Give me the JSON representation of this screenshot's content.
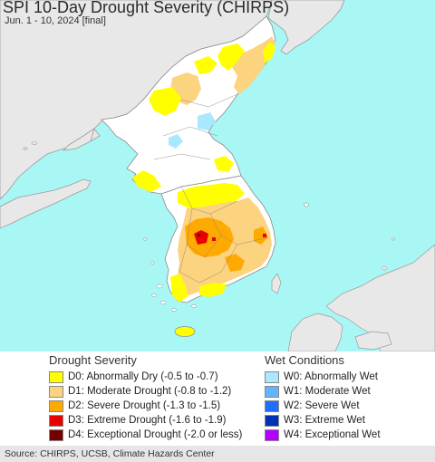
{
  "map": {
    "title": "SPI 10-Day Drought Severity (CHIRPS)",
    "subtitle": "Jun. 1 - 10, 2024 [final]",
    "colors": {
      "ocean": "#a9f7f4",
      "land": "#e8e8e8",
      "land_no_data": "#ffffff"
    }
  },
  "legend": {
    "drought": {
      "heading": "Drought Severity",
      "items": [
        {
          "code": "D0",
          "label": "D0: Abnormally Dry (-0.5 to -0.7)",
          "color": "#ffff00"
        },
        {
          "code": "D1",
          "label": "D1: Moderate Drought (-0.8 to -1.2)",
          "color": "#fcd37f"
        },
        {
          "code": "D2",
          "label": "D2: Severe Drought (-1.3 to -1.5)",
          "color": "#ffaa00"
        },
        {
          "code": "D3",
          "label": "D3: Extreme Drought (-1.6 to -1.9)",
          "color": "#e60000"
        },
        {
          "code": "D4",
          "label": "D4: Exceptional Drought (-2.0 or less)",
          "color": "#730000"
        }
      ]
    },
    "wet": {
      "heading": "Wet Conditions",
      "items": [
        {
          "code": "W0",
          "label": "W0: Abnormally Wet",
          "color": "#aae8ff"
        },
        {
          "code": "W1",
          "label": "W1: Moderate Wet",
          "color": "#64b4ff"
        },
        {
          "code": "W2",
          "label": "W2: Severe Wet",
          "color": "#1e6eff"
        },
        {
          "code": "W3",
          "label": "W3: Extreme Wet",
          "color": "#0032b4"
        },
        {
          "code": "W4",
          "label": "W4: Exceptional Wet",
          "color": "#b400ff"
        }
      ]
    }
  },
  "footer": {
    "source": "Source: CHIRPS, UCSB, Climate Hazards Center"
  }
}
